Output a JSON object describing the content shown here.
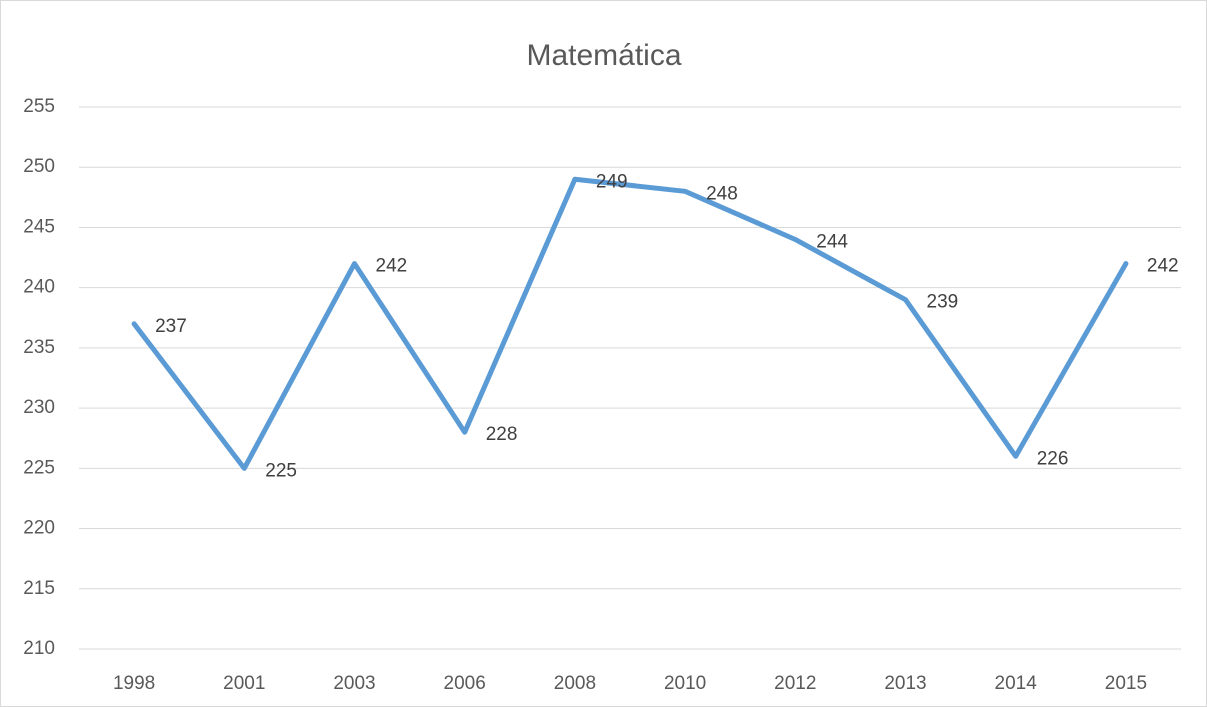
{
  "chart_data": {
    "type": "line",
    "title": "Matemática",
    "categories": [
      "1998",
      "2001",
      "2003",
      "2006",
      "2008",
      "2010",
      "2012",
      "2013",
      "2014",
      "2015"
    ],
    "values": [
      237,
      225,
      242,
      228,
      249,
      248,
      244,
      239,
      226,
      242
    ],
    "color": "#5b9bd5",
    "ylim": [
      210,
      255
    ],
    "yticks": [
      210,
      215,
      220,
      225,
      230,
      235,
      240,
      245,
      250,
      255
    ],
    "grid": true,
    "data_labels": true
  }
}
